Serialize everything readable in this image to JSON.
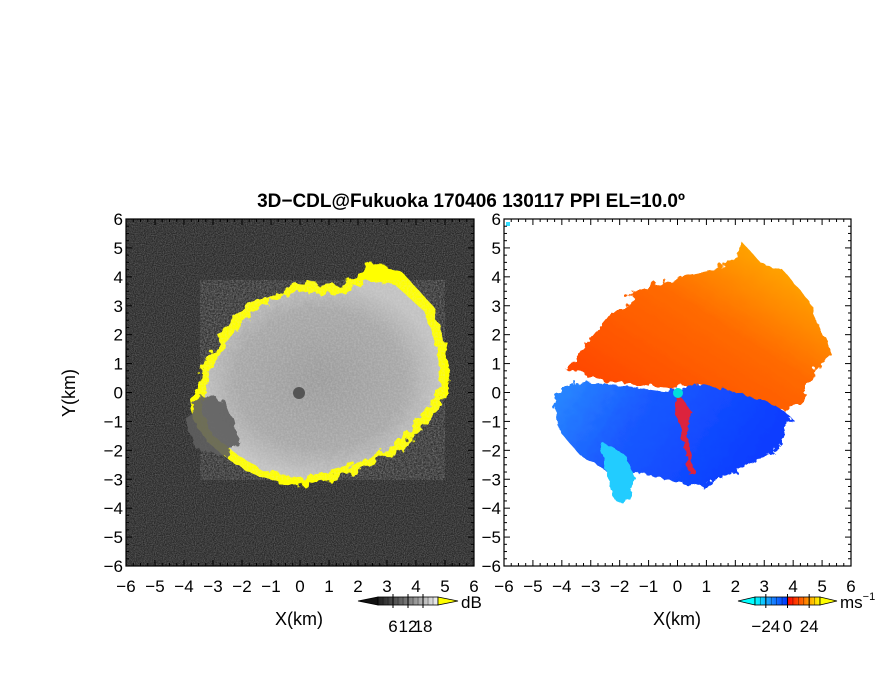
{
  "figure": {
    "title": "3D−CDL@Fukuoka 170406 130117 PPI EL=10.0º"
  },
  "chart_data": [
    {
      "type": "heatmap",
      "panel": "left",
      "xlabel": "X(km)",
      "ylabel": "Y(km)",
      "xlim": [
        -6,
        6
      ],
      "ylim": [
        -6,
        6
      ],
      "xticks": [
        "−6",
        "−5",
        "−4",
        "−3",
        "−2",
        "−1",
        "0",
        "1",
        "2",
        "3",
        "4",
        "5",
        "6"
      ],
      "yticks": [
        "−6",
        "−5",
        "−4",
        "−3",
        "−2",
        "−1",
        "0",
        "1",
        "2",
        "3",
        "4",
        "5",
        "6"
      ],
      "colorbar": {
        "unit": "dB",
        "ticks": [
          "6",
          "12",
          "18"
        ],
        "tick_values": [
          6,
          12,
          18
        ],
        "range": [
          0,
          24
        ],
        "colors": [
          "#202020",
          "#7a7a7a",
          "#f2f2f2"
        ],
        "overflow_color": "#ffff00"
      },
      "echo_region": {
        "center": [
          0,
          0
        ],
        "radius_km": 3.5,
        "edge_color": "#ffff00",
        "center_mark_color": "#555555"
      }
    },
    {
      "type": "heatmap",
      "panel": "right",
      "xlabel": "X(km)",
      "ylabel": "",
      "xlim": [
        -6,
        6
      ],
      "ylim": [
        -6,
        6
      ],
      "xticks": [
        "−6",
        "−5",
        "−4",
        "−3",
        "−2",
        "−1",
        "0",
        "1",
        "2",
        "3",
        "4",
        "5",
        "6"
      ],
      "yticks": [
        "−6",
        "−5",
        "−4",
        "−3",
        "−2",
        "−1",
        "0",
        "1",
        "2",
        "3",
        "4",
        "5",
        "6"
      ],
      "colorbar": {
        "unit": "ms",
        "unit_sup": "−1",
        "ticks": [
          "−24",
          "0",
          "24"
        ],
        "tick_values": [
          -24,
          0,
          24
        ],
        "range": [
          -36,
          36
        ],
        "colors": [
          "#00ffff",
          "#0033ff",
          "#ff0000",
          "#ffff00"
        ]
      },
      "velocity_field": {
        "north_color": "#ff4a00",
        "northeast_color": "#ffb000",
        "south_color": "#1a55ff",
        "southwest_color": "#22ccff",
        "center_mark_color": "#00dddd"
      }
    }
  ]
}
